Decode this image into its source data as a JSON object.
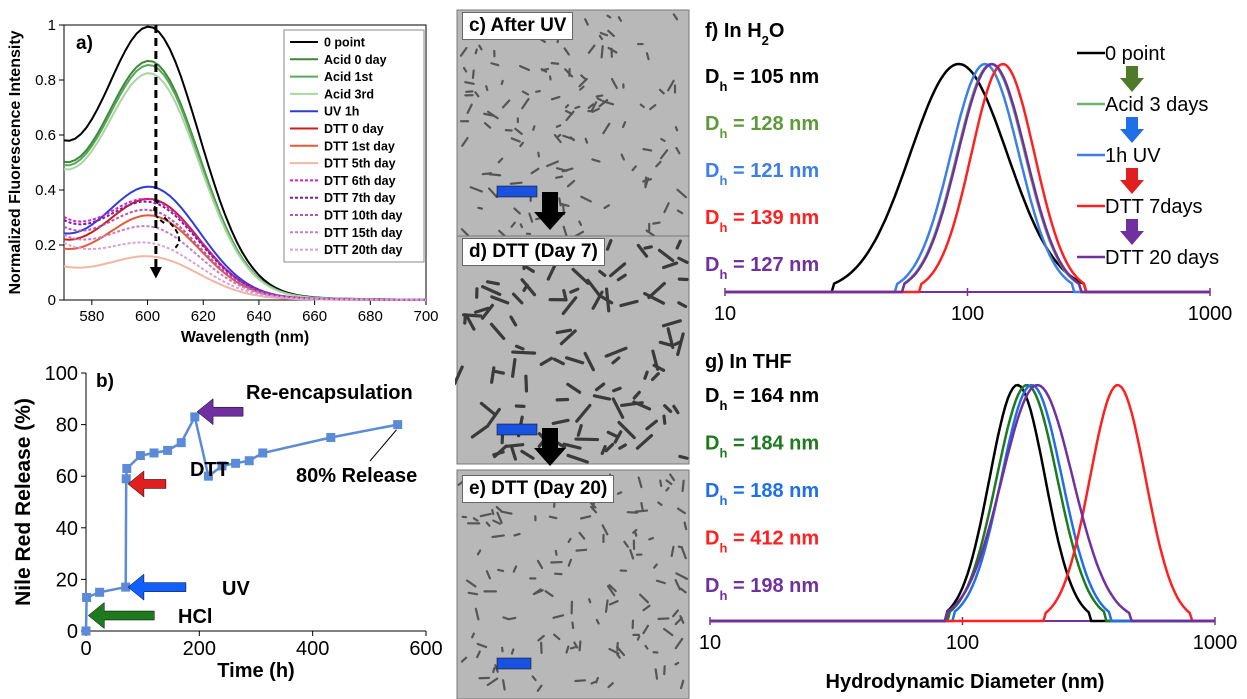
{
  "panel_a": {
    "label": "a)",
    "type": "line",
    "xlabel": "Wavelength (nm)",
    "ylabel": "Normalized Fluorescence Intensity",
    "xlim": [
      570,
      700
    ],
    "ylim": [
      0,
      1
    ],
    "xticks": [
      580,
      600,
      620,
      640,
      660,
      680,
      700
    ],
    "yticks": [
      0,
      0.2,
      0.4,
      0.6,
      0.8,
      1
    ],
    "ytick_labels": [
      "0",
      "0.2",
      "0.4",
      "0.6",
      "0.8",
      "1"
    ],
    "legend_position": "top-right",
    "series": [
      {
        "name": "0 point",
        "peak": 1.0,
        "base": 0.43,
        "color": "#000000",
        "dash": false
      },
      {
        "name": "Acid 0 day",
        "peak": 0.875,
        "base": 0.37,
        "color": "#3a8a3a",
        "dash": false
      },
      {
        "name": "Acid 1st",
        "peak": 0.86,
        "base": 0.36,
        "color": "#5aa65a",
        "dash": false
      },
      {
        "name": "Acid 3rd",
        "peak": 0.83,
        "base": 0.35,
        "color": "#a9d6a3",
        "dash": false
      },
      {
        "name": "UV 1h",
        "peak": 0.415,
        "base": 0.18,
        "color": "#2b3fd6",
        "dash": false
      },
      {
        "name": "DTT 0 day",
        "peak": 0.37,
        "base": 0.165,
        "color": "#c8201a",
        "dash": false
      },
      {
        "name": "DTT 1st day",
        "peak": 0.31,
        "base": 0.14,
        "color": "#e25a3a",
        "dash": false
      },
      {
        "name": "DTT 5th day",
        "peak": 0.16,
        "base": 0.1,
        "color": "#f2b6a4",
        "dash": false
      },
      {
        "name": "DTT 6th day",
        "peak": 0.37,
        "base": 0.25,
        "color": "#d31cd3",
        "dash": true
      },
      {
        "name": "DTT 7th day",
        "peak": 0.36,
        "base": 0.24,
        "color": "#7b1fa2",
        "dash": true
      },
      {
        "name": "DTT 10th day",
        "peak": 0.33,
        "base": 0.22,
        "color": "#b455b4",
        "dash": true
      },
      {
        "name": "DTT 15th day",
        "peak": 0.27,
        "base": 0.2,
        "color": "#c97ac9",
        "dash": true
      },
      {
        "name": "DTT 20th day",
        "peak": 0.21,
        "base": 0.18,
        "color": "#d6a3d6",
        "dash": true
      }
    ]
  },
  "panel_b": {
    "label": "b)",
    "type": "line",
    "xlabel": "Time (h)",
    "ylabel": "Nile Red Release (%)",
    "xlim": [
      0,
      600
    ],
    "ylim": [
      0,
      100
    ],
    "xticks": [
      0,
      200,
      400,
      600
    ],
    "yticks": [
      0,
      20,
      40,
      60,
      80,
      100
    ],
    "color": "#5b8bd6",
    "x": [
      0,
      1,
      24,
      70,
      71,
      72,
      96,
      120,
      144,
      168,
      192,
      216,
      240,
      264,
      288,
      312,
      432,
      550
    ],
    "y": [
      0,
      13,
      15,
      17,
      59,
      63,
      68,
      69,
      70,
      73,
      83,
      60,
      64,
      65,
      66,
      69,
      75,
      80
    ],
    "annotations": [
      {
        "text": "Re-encapsulation",
        "color": "#7030a0"
      },
      {
        "text": "DTT",
        "color": "#e02020"
      },
      {
        "text": "UV",
        "color": "#1060ff"
      },
      {
        "text": "HCl",
        "color": "#1e7a1e"
      },
      {
        "text": "80% Release",
        "color": "#000000"
      }
    ]
  },
  "tem": [
    {
      "label": "c) After UV"
    },
    {
      "label": "d) DTT (Day 7)"
    },
    {
      "label": "e) DTT (Day 20)"
    }
  ],
  "panel_f": {
    "label": "f) In H",
    "label_sub": "2",
    "label_tail": "O",
    "type": "line",
    "xscale": "log",
    "xlim": [
      10,
      1000
    ],
    "xticks": [
      10,
      100,
      1000
    ],
    "series": [
      {
        "name": "0 point",
        "dh": "D",
        "dh_sub": "h",
        "dh_text": " = 105 nm",
        "peak_nm": 92,
        "width": 0.2,
        "color": "#000000"
      },
      {
        "name": "Acid 3 days",
        "dh": "D",
        "dh_sub": "h",
        "dh_text": " = 128 nm",
        "peak_nm": 125,
        "width": 0.14,
        "color": "#6fb36f"
      },
      {
        "name": "1h UV",
        "dh": "D",
        "dh_sub": "h",
        "dh_text": " = 121 nm",
        "peak_nm": 118,
        "width": 0.14,
        "color": "#3d7fe6"
      },
      {
        "name": "DTT 7days",
        "dh": "D",
        "dh_sub": "h",
        "dh_text": " = 139 nm",
        "peak_nm": 140,
        "width": 0.13,
        "color": "#ff2020"
      },
      {
        "name": "DTT 20 days",
        "dh": "D",
        "dh_sub": "h",
        "dh_text": " = 127 nm",
        "peak_nm": 126,
        "width": 0.14,
        "color": "#7030a0"
      }
    ],
    "dh_colors": [
      "#000000",
      "#5e9a3a",
      "#3d7fe6",
      "#ff2020",
      "#7030a0"
    ],
    "legend_arrow_colors": [
      "#4e7a2a",
      "#1f6fe8",
      "#e02020",
      "#7030a0"
    ]
  },
  "panel_g": {
    "label": "g) In THF",
    "type": "line",
    "xscale": "log",
    "xlim": [
      10,
      1000
    ],
    "xticks": [
      10,
      100,
      1000
    ],
    "xlabel": "Hydrodynamic Diameter (nm)",
    "series": [
      {
        "dh": "D",
        "dh_sub": "h",
        "dh_text": " = 164 nm",
        "peak_nm": 165,
        "width": 0.11,
        "color": "#000000"
      },
      {
        "dh": "D",
        "dh_sub": "h",
        "dh_text": " = 184 nm",
        "peak_nm": 180,
        "width": 0.12,
        "color": "#1e7a1e"
      },
      {
        "dh": "D",
        "dh_sub": "h",
        "dh_text": " = 188 nm",
        "peak_nm": 188,
        "width": 0.12,
        "color": "#1f6fe8"
      },
      {
        "dh": "D",
        "dh_sub": "h",
        "dh_text": " = 412 nm",
        "peak_nm": 412,
        "width": 0.11,
        "color": "#ff2020"
      },
      {
        "dh": "D",
        "dh_sub": "h",
        "dh_text": " = 198 nm",
        "peak_nm": 198,
        "width": 0.14,
        "color": "#7030a0"
      }
    ]
  }
}
